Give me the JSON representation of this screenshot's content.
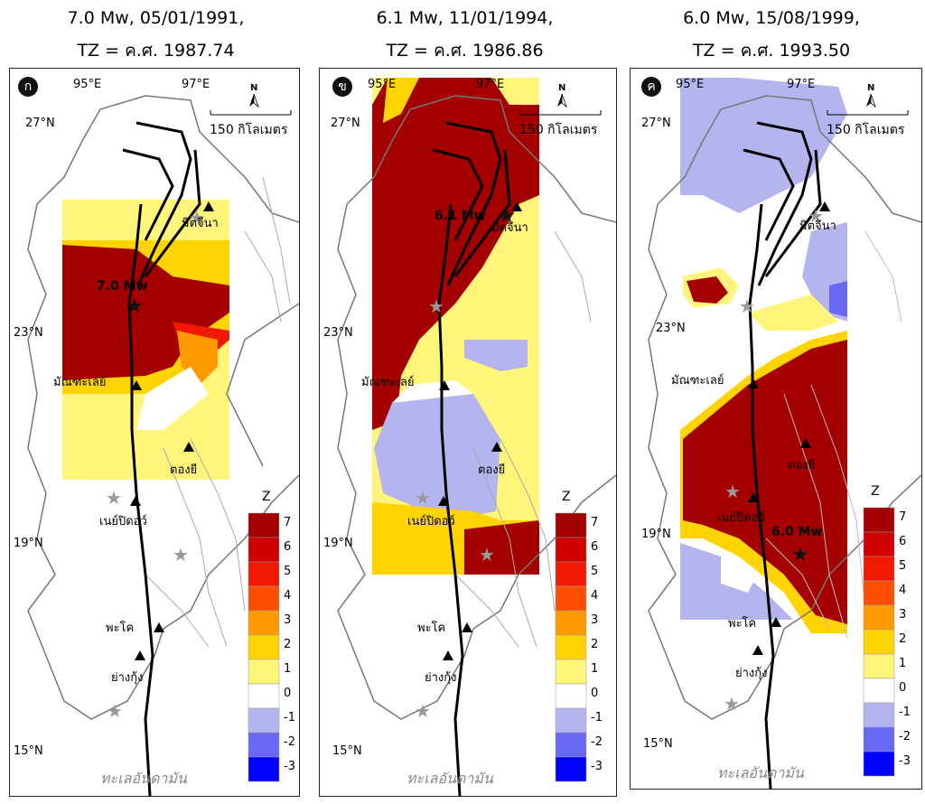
{
  "panels": [
    {
      "id": "a",
      "badge": "ก",
      "title_line1": "7.0 Mw, 05/01/1991,",
      "title_line2": "TZ = ค.ศ. 1987.74",
      "mw_label": "7.0 Mw"
    },
    {
      "id": "b",
      "badge": "ข",
      "title_line1": "6.1 Mw, 11/01/1994,",
      "title_line2": "TZ = ค.ศ. 1986.86",
      "mw_label": "6.1 Mw"
    },
    {
      "id": "c",
      "badge": "ค",
      "title_line1": "6.0 Mw, 15/08/1999,",
      "title_line2": "TZ = ค.ศ. 1993.50",
      "mw_label": "6.0 Mw"
    }
  ],
  "map_labels": {
    "lon_95": "95°E",
    "lon_97": "97°E",
    "lat_27": "27°N",
    "lat_23": "23°N",
    "lat_19": "19°N",
    "lat_15": "15°N",
    "north": "N",
    "scale": "150 กิโลเมตร",
    "sea": "ทะเลอันดามัน"
  },
  "cities": {
    "myitkyina": "มิตจีนา",
    "mandalay": "มัณฑะเลย์",
    "taunggyi": "ตองยี",
    "naypyidaw": "เนย์ปิดอว์",
    "bago": "พะโค",
    "yangon": "ย่างกุ้ง"
  },
  "colorbar": {
    "title": "Z",
    "ticks": [
      "7",
      "6",
      "5",
      "4",
      "3",
      "2",
      "1",
      "0",
      "-1",
      "-2",
      "-3"
    ],
    "colors": [
      "#a50000",
      "#d10000",
      "#f01800",
      "#ff4e00",
      "#ff9a00",
      "#ffd400",
      "#fff57a",
      "#ffffff",
      "#b4b4ee",
      "#6868f5",
      "#0000ff"
    ]
  }
}
